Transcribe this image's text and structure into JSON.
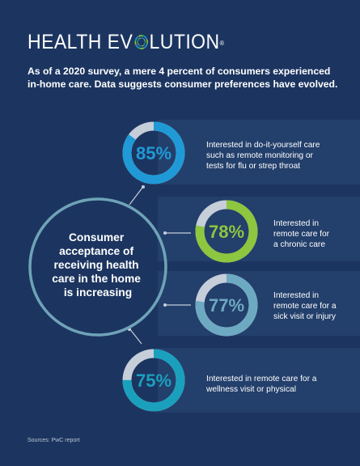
{
  "brand": {
    "logo_left": "HEALTH EV",
    "logo_right": "LUTION",
    "logo_reg": "®"
  },
  "intro": "As of a 2020 survey, a mere 4 percent of consumers experienced in-home care. Data suggests consumer preferences have evolved.",
  "center_label": [
    "Consumer",
    "acceptance of",
    "receiving health",
    "care in the home",
    "is increasing"
  ],
  "source": "Sources: PwC report",
  "colors": {
    "background": "#1c3560",
    "band": "#233f6b",
    "track": "#c5ced9",
    "center_ring": "#6fa3b8"
  },
  "chart_data": {
    "type": "donut",
    "title": "",
    "categories": [
      "Interested in do-it-yourself care such as remote monitoring or tests for flu or strep throat",
      "Interested in remote care for a chronic care",
      "Interested in remote care for a sick visit or injury",
      "Interested in remote care for a wellness visit or physical"
    ],
    "values": [
      85,
      78,
      77,
      75
    ],
    "unit": "%",
    "display": [
      "85%",
      "78%",
      "77%",
      "75%"
    ],
    "colors": [
      "#1f9ad6",
      "#8dc63f",
      "#6ea9c2",
      "#1aa0bd"
    ],
    "descriptions": [
      "Interested in do-it-yourself care\nsuch as remote monitoring or\ntests for flu or strep throat",
      "Interested in\nremote care for\na chronic care",
      "Interested in\nremote care for a\nsick visit or injury",
      "Interested in remote care for a\nwellness visit or physical"
    ]
  }
}
